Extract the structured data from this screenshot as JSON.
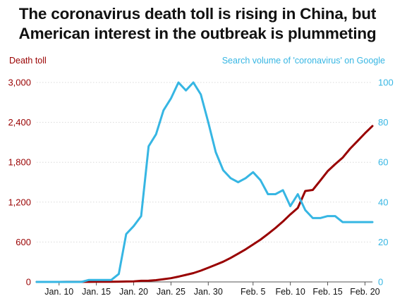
{
  "chart_data": {
    "type": "line",
    "title_lines": [
      "The coronavirus death toll is rising in China, but",
      "American interest in the outbreak is plummeting"
    ],
    "left_axis": {
      "label": "Death toll",
      "ylim": [
        0,
        3000
      ],
      "ticks": [
        0,
        600,
        1200,
        1800,
        2400,
        3000
      ],
      "tick_labels": [
        "0",
        "600",
        "1,200",
        "1,800",
        "2,400",
        "3,000"
      ]
    },
    "right_axis": {
      "label": "Search volume of 'coronavirus' on Google",
      "ylim": [
        0,
        100
      ],
      "ticks": [
        0,
        20,
        40,
        60,
        80,
        100
      ],
      "tick_labels": [
        "0",
        "20",
        "40",
        "60",
        "80",
        "100"
      ]
    },
    "x_axis": {
      "start": "Jan. 7",
      "end": "Feb. 21",
      "tick_days": [
        3,
        8,
        13,
        18,
        23,
        29,
        34,
        39,
        44
      ],
      "tick_labels": [
        "Jan. 10",
        "Jan. 15",
        "Jan. 20",
        "Jan. 25",
        "Jan. 30",
        "Feb. 5",
        "Feb. 10",
        "Feb. 15",
        "Feb. 20"
      ]
    },
    "grid": true,
    "colors": {
      "death_toll": "#990000",
      "search": "#36b6e3",
      "text": "#111111",
      "grid": "#d9d9d9"
    },
    "series": [
      {
        "name": "Death toll",
        "axis": "left",
        "x": [
          "Jan. 7",
          "Jan. 8",
          "Jan. 9",
          "Jan. 10",
          "Jan. 11",
          "Jan. 12",
          "Jan. 13",
          "Jan. 14",
          "Jan. 15",
          "Jan. 16",
          "Jan. 17",
          "Jan. 18",
          "Jan. 19",
          "Jan. 20",
          "Jan. 21",
          "Jan. 22",
          "Jan. 23",
          "Jan. 24",
          "Jan. 25",
          "Jan. 26",
          "Jan. 27",
          "Jan. 28",
          "Jan. 29",
          "Jan. 30",
          "Jan. 31",
          "Feb. 1",
          "Feb. 2",
          "Feb. 3",
          "Feb. 4",
          "Feb. 5",
          "Feb. 6",
          "Feb. 7",
          "Feb. 8",
          "Feb. 9",
          "Feb. 10",
          "Feb. 11",
          "Feb. 12",
          "Feb. 13",
          "Feb. 14",
          "Feb. 15",
          "Feb. 16",
          "Feb. 17",
          "Feb. 18",
          "Feb. 19",
          "Feb. 20",
          "Feb. 21"
        ],
        "values": [
          0,
          0,
          0,
          0,
          1,
          1,
          1,
          1,
          2,
          2,
          3,
          4,
          6,
          9,
          17,
          18,
          26,
          41,
          56,
          80,
          106,
          132,
          170,
          213,
          259,
          304,
          361,
          425,
          490,
          563,
          636,
          722,
          811,
          908,
          1016,
          1113,
          1367,
          1383,
          1523,
          1665,
          1770,
          1868,
          2004,
          2118,
          2236,
          2345
        ]
      },
      {
        "name": "Search volume of 'coronavirus' on Google",
        "axis": "right",
        "x": [
          "Jan. 7",
          "Jan. 8",
          "Jan. 9",
          "Jan. 10",
          "Jan. 11",
          "Jan. 12",
          "Jan. 13",
          "Jan. 14",
          "Jan. 15",
          "Jan. 16",
          "Jan. 17",
          "Jan. 18",
          "Jan. 19",
          "Jan. 20",
          "Jan. 21",
          "Jan. 22",
          "Jan. 23",
          "Jan. 24",
          "Jan. 25",
          "Jan. 26",
          "Jan. 27",
          "Jan. 28",
          "Jan. 29",
          "Jan. 30",
          "Jan. 31",
          "Feb. 1",
          "Feb. 2",
          "Feb. 3",
          "Feb. 4",
          "Feb. 5",
          "Feb. 6",
          "Feb. 7",
          "Feb. 8",
          "Feb. 9",
          "Feb. 10",
          "Feb. 11",
          "Feb. 12",
          "Feb. 13",
          "Feb. 14",
          "Feb. 15",
          "Feb. 16",
          "Feb. 17",
          "Feb. 18",
          "Feb. 19",
          "Feb. 20",
          "Feb. 21"
        ],
        "values": [
          0,
          0,
          0,
          0,
          0,
          0,
          0,
          1,
          1,
          1,
          1,
          4,
          24,
          28,
          33,
          68,
          74,
          86,
          92,
          100,
          96,
          100,
          94,
          80,
          65,
          56,
          52,
          50,
          52,
          55,
          51,
          44,
          44,
          46,
          38,
          44,
          36,
          32,
          32,
          33,
          33,
          30,
          30,
          30,
          30,
          30
        ]
      }
    ]
  }
}
